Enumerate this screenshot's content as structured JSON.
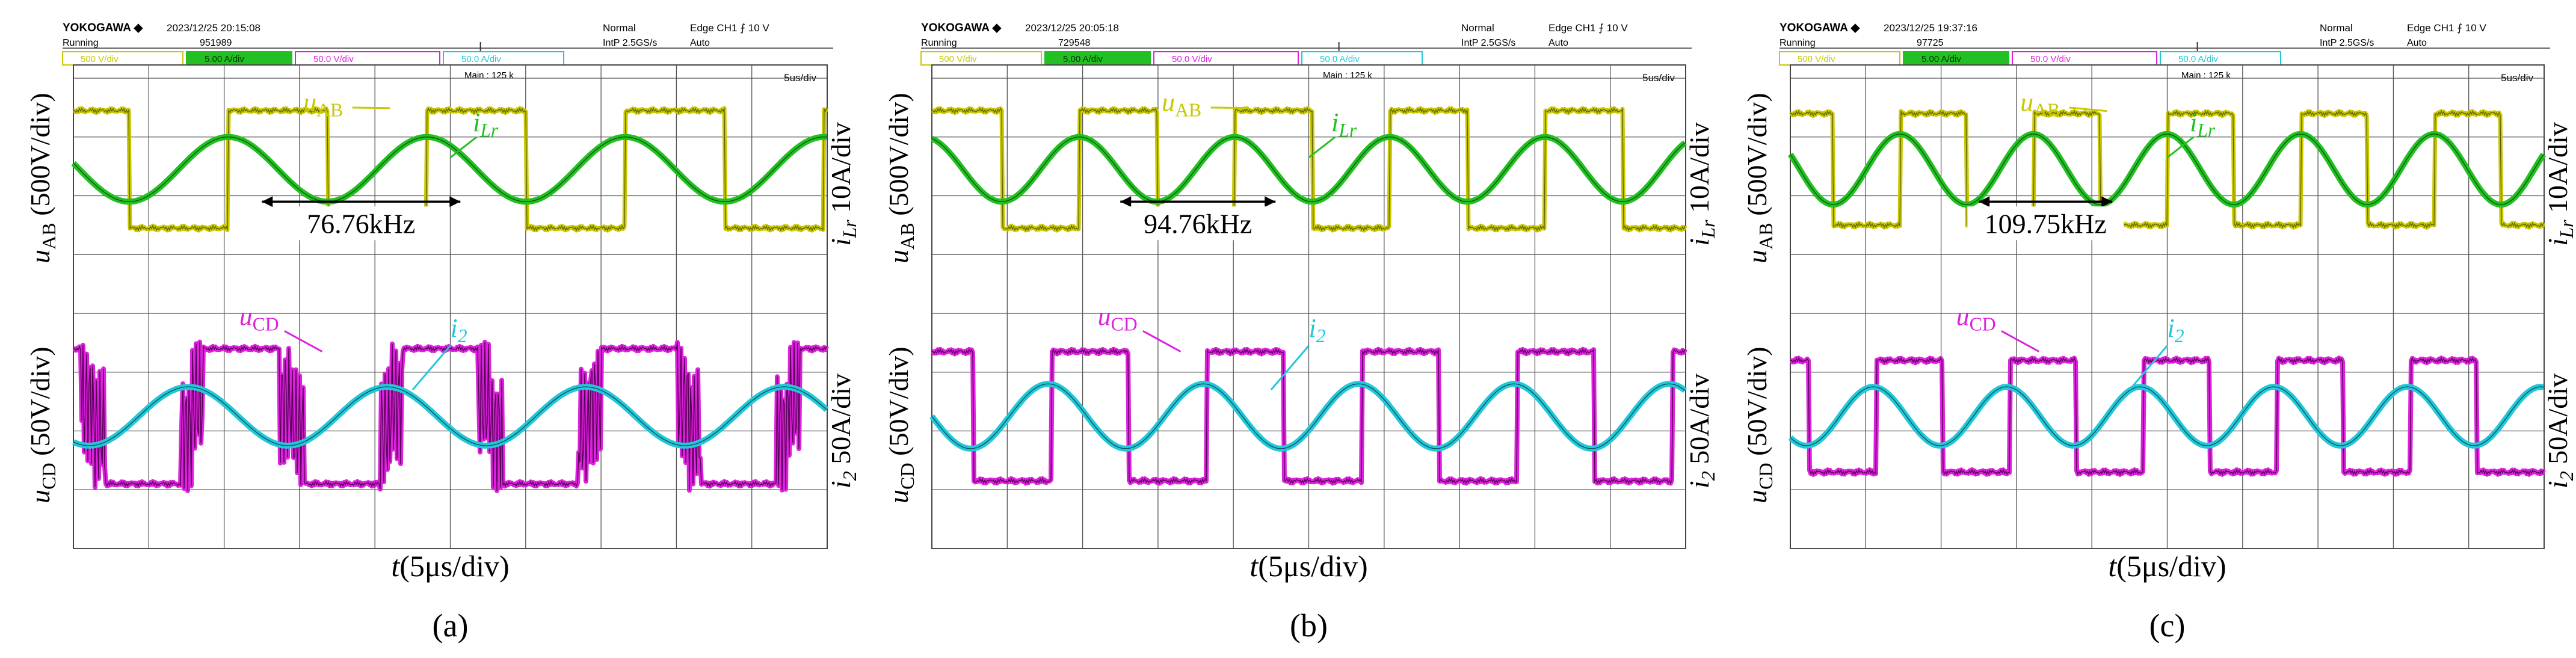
{
  "figure": {
    "x_axis_label": "t(5μs/div)",
    "panels": [
      {
        "caption": "(a)",
        "header": {
          "brand": "YOKOGAWA ◆",
          "timestamp": "2023/12/25 20:15:08",
          "state": "Running",
          "acq_count": "951989",
          "mode": "Normal",
          "sample_rate": "IntP 2.5GS/s",
          "trigger": "Edge CH1 ⨍ 10 V",
          "trigger_mode": "Auto",
          "main_label": "Main : 125 k",
          "time_div": "5us/div"
        },
        "channels": [
          {
            "label": "500 V/div",
            "color": "#c8c800"
          },
          {
            "label": "5.00 A/div",
            "color": "#22c022"
          },
          {
            "label": "50.0 V/div",
            "color": "#dd22dd"
          },
          {
            "label": "50.0 A/div",
            "color": "#22c8d8"
          }
        ],
        "upper": {
          "wave_label": "u_AB",
          "current_label": "i_Lr",
          "left_axis": "u_AB (500V/div)",
          "right_axis": "i_Lr 10A/div"
        },
        "lower": {
          "wave_label": "u_CD",
          "current_label": "i_2",
          "left_axis": "u_CD (50V/div)",
          "right_axis": "i_2 50A/div"
        },
        "frequency_annotation": "76.76kHz"
      },
      {
        "caption": "(b)",
        "header": {
          "brand": "YOKOGAWA ◆",
          "timestamp": "2023/12/25 20:05:18",
          "state": "Running",
          "acq_count": "729548",
          "mode": "Normal",
          "sample_rate": "IntP 2.5GS/s",
          "trigger": "Edge CH1 ⨍ 10 V",
          "trigger_mode": "Auto",
          "main_label": "Main : 125 k",
          "time_div": "5us/div"
        },
        "channels": [
          {
            "label": "500 V/div",
            "color": "#c8c800"
          },
          {
            "label": "5.00 A/div",
            "color": "#22c022"
          },
          {
            "label": "50.0 V/div",
            "color": "#dd22dd"
          },
          {
            "label": "50.0 A/div",
            "color": "#22c8d8"
          }
        ],
        "upper": {
          "wave_label": "u_AB",
          "current_label": "i_Lr",
          "left_axis": "u_AB (500V/div)",
          "right_axis": "i_Lr 10A/div"
        },
        "lower": {
          "wave_label": "u_CD",
          "current_label": "i_2",
          "left_axis": "u_CD (50V/div)",
          "right_axis": "i_2 50A/div"
        },
        "frequency_annotation": "94.76kHz"
      },
      {
        "caption": "(c)",
        "header": {
          "brand": "YOKOGAWA ◆",
          "timestamp": "2023/12/25 19:37:16",
          "state": "Running",
          "acq_count": "97725",
          "mode": "Normal",
          "sample_rate": "IntP 2.5GS/s",
          "trigger": "Edge CH1 ⨍ 10 V",
          "trigger_mode": "Auto",
          "main_label": "Main : 125 k",
          "time_div": "5us/div"
        },
        "channels": [
          {
            "label": "500 V/div",
            "color": "#c8c800"
          },
          {
            "label": "5.00 A/div",
            "color": "#22c022"
          },
          {
            "label": "50.0 V/div",
            "color": "#dd22dd"
          },
          {
            "label": "50.0 A/div",
            "color": "#22c8d8"
          }
        ],
        "upper": {
          "wave_label": "u_AB",
          "current_label": "i_Lr",
          "left_axis": "u_AB (500V/div)",
          "right_axis": "i_Lr 10A/div"
        },
        "lower": {
          "wave_label": "u_CD",
          "current_label": "i_2",
          "left_axis": "u_CD (50V/div)",
          "right_axis": "i_2 50A/div"
        },
        "frequency_annotation": "109.75kHz"
      }
    ]
  },
  "chart_data": [
    {
      "type": "line",
      "title": "(a)",
      "xlabel": "t(5μs/div)",
      "switching_frequency_kHz": 76.76,
      "time_per_div_us": 5,
      "divisions": 10,
      "series": [
        {
          "name": "u_AB",
          "unit": "V",
          "scale_per_div": 500,
          "shape": "square",
          "amplitude_div": 1.0,
          "color": "#c8c800"
        },
        {
          "name": "i_Lr",
          "unit": "A",
          "scale_per_div": 10,
          "shape": "sine",
          "amplitude_div": 0.55,
          "color": "#22c022"
        },
        {
          "name": "u_CD",
          "unit": "V",
          "scale_per_div": 50,
          "shape": "square",
          "amplitude_div": 1.15,
          "color": "#dd22dd"
        },
        {
          "name": "i_2",
          "unit": "A",
          "scale_per_div": 50,
          "shape": "sine",
          "amplitude_div": 0.5,
          "color": "#22c8d8"
        }
      ]
    },
    {
      "type": "line",
      "title": "(b)",
      "xlabel": "t(5μs/div)",
      "switching_frequency_kHz": 94.76,
      "time_per_div_us": 5,
      "divisions": 10,
      "series": [
        {
          "name": "u_AB",
          "unit": "V",
          "scale_per_div": 500,
          "shape": "square",
          "amplitude_div": 1.0,
          "color": "#c8c800"
        },
        {
          "name": "i_Lr",
          "unit": "A",
          "scale_per_div": 10,
          "shape": "sine",
          "amplitude_div": 0.55,
          "color": "#22c022"
        },
        {
          "name": "u_CD",
          "unit": "V",
          "scale_per_div": 50,
          "shape": "square",
          "amplitude_div": 1.1,
          "color": "#dd22dd"
        },
        {
          "name": "i_2",
          "unit": "A",
          "scale_per_div": 50,
          "shape": "sine",
          "amplitude_div": 0.55,
          "color": "#22c8d8"
        }
      ]
    },
    {
      "type": "line",
      "title": "(c)",
      "xlabel": "t(5μs/div)",
      "switching_frequency_kHz": 109.75,
      "time_per_div_us": 5,
      "divisions": 10,
      "series": [
        {
          "name": "u_AB",
          "unit": "V",
          "scale_per_div": 500,
          "shape": "square",
          "amplitude_div": 0.95,
          "color": "#c8c800"
        },
        {
          "name": "i_Lr",
          "unit": "A",
          "scale_per_div": 10,
          "shape": "sine",
          "amplitude_div": 0.6,
          "color": "#22c022"
        },
        {
          "name": "u_CD",
          "unit": "V",
          "scale_per_div": 50,
          "shape": "square",
          "amplitude_div": 0.95,
          "color": "#dd22dd"
        },
        {
          "name": "i_2",
          "unit": "A",
          "scale_per_div": 50,
          "shape": "sine",
          "amplitude_div": 0.5,
          "color": "#22c8d8"
        }
      ]
    }
  ]
}
